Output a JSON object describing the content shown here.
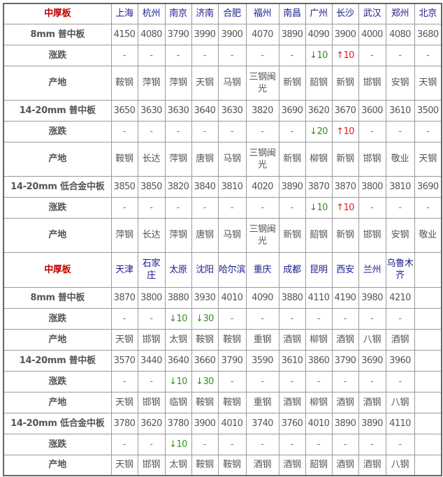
{
  "colors": {
    "section_title": "#c00000",
    "city": "#1a1a8c",
    "down": "#3a8a2a",
    "up": "#e02020"
  },
  "sections": [
    {
      "title": "中厚板",
      "cities": [
        "上海",
        "杭州",
        "南京",
        "济南",
        "合肥",
        "福州",
        "南昌",
        "广州",
        "长沙",
        "武汉",
        "郑州",
        "北京"
      ],
      "products": [
        {
          "name": "8mm 普中板",
          "prices": [
            "4150",
            "4080",
            "3790",
            "3990",
            "3900",
            "4070",
            "3890",
            "4090",
            "3900",
            "4000",
            "4080",
            "3680"
          ],
          "change_label": "涨跌",
          "changes": [
            "-",
            "-",
            "-",
            "-",
            "-",
            "-",
            "-",
            "↓10",
            "↑10",
            "-",
            "-",
            "-"
          ],
          "origin_label": "产地",
          "origins": [
            "鞍钢",
            "萍钢",
            "萍钢",
            "天钢",
            "马钢",
            "三钢闽光",
            "新钢",
            "韶钢",
            "新钢",
            "邯钢",
            "安钢",
            "天钢"
          ]
        },
        {
          "name": "14-20mm 普中板",
          "prices": [
            "3650",
            "3630",
            "3630",
            "3640",
            "3630",
            "3820",
            "3690",
            "3620",
            "3670",
            "3600",
            "3610",
            "3500"
          ],
          "change_label": "涨跌",
          "changes": [
            "-",
            "-",
            "-",
            "-",
            "-",
            "-",
            "-",
            "↓20",
            "↑10",
            "-",
            "-",
            "-"
          ],
          "origin_label": "产地",
          "origins": [
            "鞍钢",
            "长达",
            "萍钢",
            "唐钢",
            "马钢",
            "三钢闽光",
            "新钢",
            "柳钢",
            "新钢",
            "邯钢",
            "敬业",
            "天钢"
          ]
        },
        {
          "name": "14-20mm 低合金中板",
          "prices": [
            "3850",
            "3850",
            "3820",
            "3840",
            "3810",
            "4020",
            "3890",
            "3870",
            "3870",
            "3800",
            "3810",
            "3690"
          ],
          "change_label": "涨跌",
          "changes": [
            "-",
            "-",
            "-",
            "-",
            "-",
            "-",
            "-",
            "↓10",
            "↑10",
            "-",
            "-",
            "-"
          ],
          "origin_label": "产地",
          "origins": [
            "萍钢",
            "长达",
            "萍钢",
            "唐钢",
            "马钢",
            "三钢闽光",
            "新钢",
            "韶钢",
            "新钢",
            "邯钢",
            "安钢",
            "敬业"
          ]
        }
      ]
    },
    {
      "title": "中厚板",
      "cities": [
        "天津",
        "石家庄",
        "太原",
        "沈阳",
        "哈尔滨",
        "重庆",
        "成都",
        "昆明",
        "西安",
        "兰州",
        "乌鲁木齐",
        ""
      ],
      "products": [
        {
          "name": "8mm 普中板",
          "prices": [
            "3870",
            "3800",
            "3880",
            "3930",
            "4010",
            "4090",
            "3880",
            "4110",
            "4190",
            "3980",
            "4210",
            ""
          ],
          "change_label": "涨跌",
          "changes": [
            "-",
            "-",
            "↓10",
            "↓30",
            "-",
            "-",
            "-",
            "-",
            "-",
            "-",
            "-",
            ""
          ],
          "origin_label": "产地",
          "origins": [
            "天钢",
            "邯钢",
            "太钢",
            "鞍钢",
            "鞍钢",
            "重钢",
            "酒钢",
            "柳钢",
            "酒钢",
            "八钢",
            "酒钢",
            ""
          ]
        },
        {
          "name": "14-20mm 普中板",
          "prices": [
            "3570",
            "3440",
            "3640",
            "3660",
            "3790",
            "3590",
            "3610",
            "3860",
            "3790",
            "3690",
            "3960",
            ""
          ],
          "change_label": "涨跌",
          "changes": [
            "-",
            "-",
            "↓10",
            "↓30",
            "-",
            "-",
            "-",
            "-",
            "-",
            "-",
            "-",
            ""
          ],
          "origin_label": "产地",
          "origins": [
            "天钢",
            "邯钢",
            "临钢",
            "鞍钢",
            "鞍钢",
            "重钢",
            "酒钢",
            "柳钢",
            "酒钢",
            "酒钢",
            "八钢",
            ""
          ]
        },
        {
          "name": "14-20mm 低合金中板",
          "prices": [
            "3780",
            "3620",
            "3780",
            "3900",
            "4010",
            "3740",
            "3760",
            "4010",
            "3890",
            "3890",
            "4110",
            ""
          ],
          "change_label": "涨跌",
          "changes": [
            "-",
            "-",
            "↓10",
            "-",
            "-",
            "-",
            "-",
            "-",
            "-",
            "-",
            "-",
            ""
          ],
          "origin_label": "产地",
          "origins": [
            "天钢",
            "邯钢",
            "太钢",
            "鞍钢",
            "鞍钢",
            "酒钢",
            "酒钢",
            "韶钢",
            "酒钢",
            "酒钢",
            "八钢",
            ""
          ]
        }
      ]
    }
  ]
}
